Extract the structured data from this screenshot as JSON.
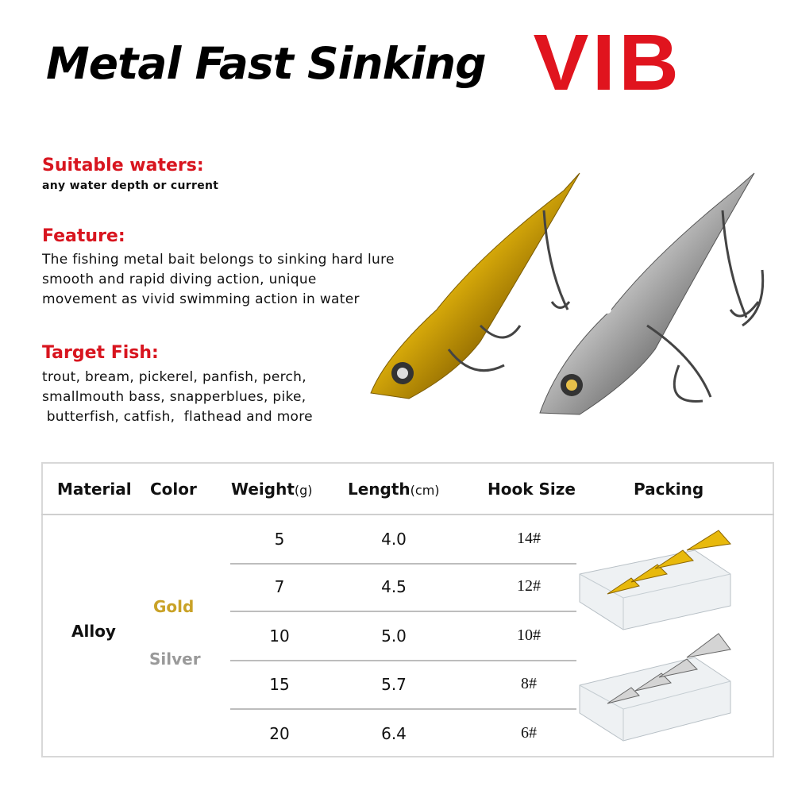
{
  "title": {
    "main": "Metal Fast Sinking",
    "accent": "VIB",
    "accent_color": "#e0141e"
  },
  "sections": [
    {
      "heading": "Suitable waters:",
      "lines": [
        "any water depth or current"
      ]
    },
    {
      "heading": "Feature:",
      "lines": [
        "The fishing metal bait belongs to sinking hard lure",
        "smooth and rapid diving action, unique",
        "movement as vivid swimming action in water"
      ]
    },
    {
      "heading": "Target Fish:",
      "lines": [
        "trout, bream, pickerel, panfish, perch,",
        "smallmouth bass, snapperblues, pike,",
        " butterfish, catfish,  flathead and more"
      ]
    }
  ],
  "table": {
    "headers": {
      "material": "Material",
      "color": "Color",
      "weight": "Weight",
      "weight_unit": "(g)",
      "length": "Length",
      "length_unit": "(cm)",
      "hook": "Hook Size",
      "packing": "Packing"
    },
    "material": "Alloy",
    "colors": [
      {
        "name": "Gold",
        "hex": "#c9a227"
      },
      {
        "name": "Silver",
        "hex": "#9a9a9a"
      }
    ],
    "rows": [
      {
        "weight": "5",
        "length": "4.0",
        "hook": "14#"
      },
      {
        "weight": "7",
        "length": "4.5",
        "hook": "12#"
      },
      {
        "weight": "10",
        "length": "5.0",
        "hook": "10#"
      },
      {
        "weight": "15",
        "length": "5.7",
        "hook": "8#"
      },
      {
        "weight": "20",
        "length": "6.4",
        "hook": "6#"
      }
    ]
  },
  "images": [
    "gold-vib-lure",
    "silver-vib-lure",
    "gold-lure-packing-box",
    "silver-lure-packing-box"
  ]
}
